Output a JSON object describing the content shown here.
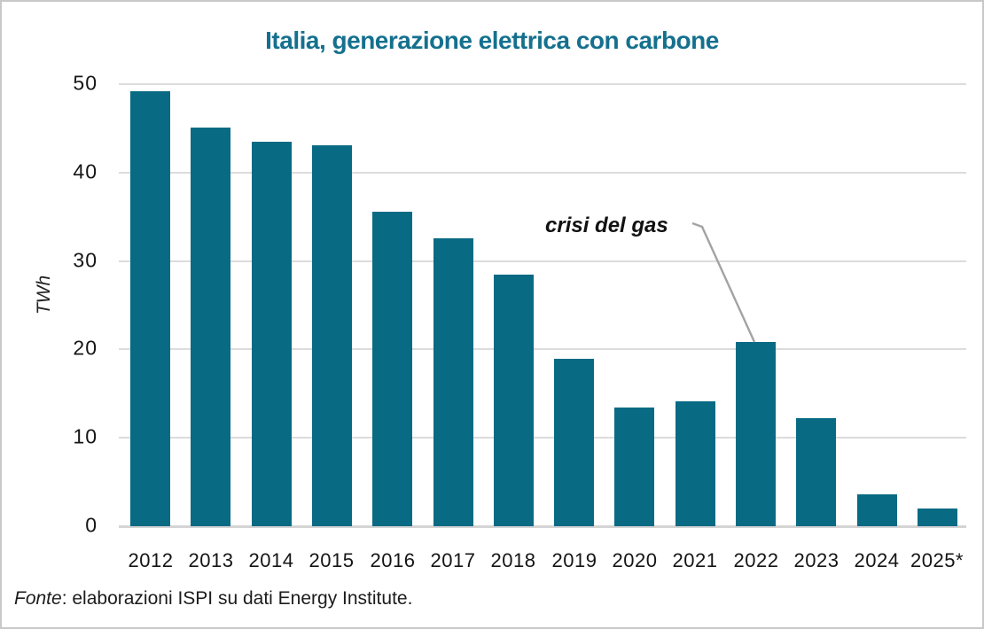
{
  "chart_data": {
    "type": "bar",
    "title": "Italia, generazione elettrica con carbone",
    "ylabel": "TWh",
    "categories": [
      "2012",
      "2013",
      "2014",
      "2015",
      "2016",
      "2017",
      "2018",
      "2019",
      "2020",
      "2021",
      "2022",
      "2023",
      "2024",
      "2025*"
    ],
    "values": [
      49.2,
      45.1,
      43.5,
      43.1,
      35.6,
      32.6,
      28.5,
      18.9,
      13.4,
      14.1,
      20.8,
      12.2,
      3.6,
      2.0
    ],
    "ylim": [
      0,
      50
    ],
    "yticks": [
      0,
      10,
      20,
      30,
      40,
      50
    ],
    "grid": true,
    "legend": "none",
    "bar_color": "#096a83",
    "title_color": "#15708e",
    "annotation": "crisi del gas",
    "annotation_target_category": "2022"
  },
  "footer": {
    "prefix_italic": "Fonte",
    "text": ": elaborazioni ISPI su dati Energy Institute."
  }
}
